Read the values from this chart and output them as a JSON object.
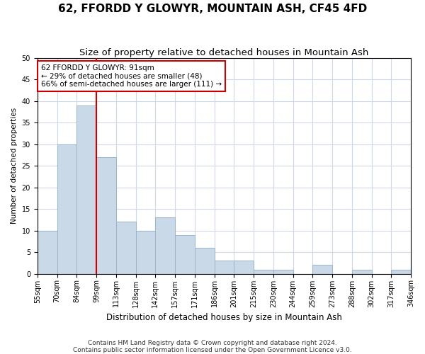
{
  "title": "62, FFORDD Y GLOWYR, MOUNTAIN ASH, CF45 4FD",
  "subtitle": "Size of property relative to detached houses in Mountain Ash",
  "xlabel": "Distribution of detached houses by size in Mountain Ash",
  "ylabel": "Number of detached properties",
  "bar_values": [
    10,
    30,
    39,
    27,
    12,
    10,
    13,
    9,
    6,
    3,
    3,
    1,
    1,
    0,
    2,
    0,
    1,
    0,
    1
  ],
  "categories": [
    "55sqm",
    "70sqm",
    "84sqm",
    "99sqm",
    "113sqm",
    "128sqm",
    "142sqm",
    "157sqm",
    "171sqm",
    "186sqm",
    "201sqm",
    "215sqm",
    "230sqm",
    "244sqm",
    "259sqm",
    "273sqm",
    "288sqm",
    "302sqm",
    "317sqm",
    "346sqm"
  ],
  "bar_color": "#c9d9e8",
  "bar_edge_color": "#9ab4cb",
  "marker_line_color": "#cc0000",
  "marker_bar_index": 2,
  "ylim": [
    0,
    50
  ],
  "yticks": [
    0,
    5,
    10,
    15,
    20,
    25,
    30,
    35,
    40,
    45,
    50
  ],
  "annotation_title": "62 FFORDD Y GLOWYR: 91sqm",
  "annotation_line1": "← 29% of detached houses are smaller (48)",
  "annotation_line2": "66% of semi-detached houses are larger (111) →",
  "annotation_box_facecolor": "#ffffff",
  "annotation_box_edgecolor": "#cc0000",
  "footer1": "Contains HM Land Registry data © Crown copyright and database right 2024.",
  "footer2": "Contains public sector information licensed under the Open Government Licence v3.0.",
  "grid_color": "#cdd8e8",
  "title_fontsize": 11,
  "subtitle_fontsize": 9.5,
  "xlabel_fontsize": 8.5,
  "ylabel_fontsize": 7.5,
  "tick_fontsize": 7.0,
  "annotation_fontsize": 7.5,
  "footer_fontsize": 6.5
}
